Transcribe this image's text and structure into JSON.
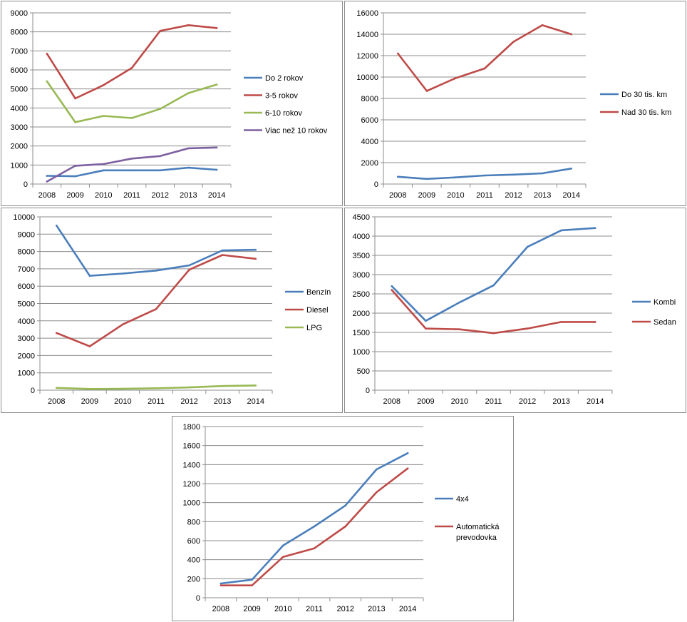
{
  "chart_data": [
    {
      "type": "line",
      "categories": [
        "2008",
        "2009",
        "2010",
        "2011",
        "2012",
        "2013",
        "2014"
      ],
      "ylim": [
        0,
        9000
      ],
      "ystep": 1000,
      "grid": true,
      "legend": "right",
      "series": [
        {
          "name": "Do 2 rokov",
          "color": "#4a7ebb",
          "values": [
            430,
            410,
            720,
            720,
            720,
            860,
            750
          ]
        },
        {
          "name": "3-5 rokov",
          "color": "#be4b48",
          "values": [
            6850,
            4500,
            5200,
            6100,
            8050,
            8350,
            8200
          ]
        },
        {
          "name": "6-10 rokov",
          "color": "#98b954",
          "values": [
            5400,
            3250,
            3580,
            3470,
            3950,
            4780,
            5230
          ]
        },
        {
          "name": "Viac než 10 rokov",
          "color": "#7d60a0",
          "values": [
            130,
            960,
            1050,
            1340,
            1470,
            1880,
            1920
          ]
        }
      ]
    },
    {
      "type": "line",
      "categories": [
        "2008",
        "2009",
        "2010",
        "2011",
        "2012",
        "2013",
        "2014"
      ],
      "ylim": [
        0,
        16000
      ],
      "ystep": 2000,
      "grid": true,
      "legend": "right",
      "series": [
        {
          "name": "Do 30 tis. km",
          "color": "#4a7ebb",
          "values": [
            680,
            480,
            620,
            800,
            880,
            1000,
            1450
          ]
        },
        {
          "name": "Nad 30 tis. km",
          "color": "#be4b48",
          "values": [
            12200,
            8700,
            9900,
            10800,
            13300,
            14850,
            14000
          ]
        }
      ]
    },
    {
      "type": "line",
      "categories": [
        "2008",
        "2009",
        "2010",
        "2011",
        "2012",
        "2013",
        "2014"
      ],
      "ylim": [
        0,
        10000
      ],
      "ystep": 1000,
      "grid": true,
      "legend": "right",
      "series": [
        {
          "name": "Benzín",
          "color": "#4a7ebb",
          "values": [
            9500,
            6600,
            6730,
            6900,
            7200,
            8060,
            8100
          ]
        },
        {
          "name": "Diesel",
          "color": "#be4b48",
          "values": [
            3300,
            2530,
            3800,
            4680,
            6950,
            7800,
            7580
          ]
        },
        {
          "name": "LPG",
          "color": "#98b954",
          "values": [
            130,
            70,
            80,
            110,
            160,
            240,
            270
          ]
        }
      ]
    },
    {
      "type": "line",
      "categories": [
        "2008",
        "2009",
        "2010",
        "2011",
        "2012",
        "2013",
        "2014"
      ],
      "ylim": [
        0,
        4500
      ],
      "ystep": 500,
      "grid": true,
      "legend": "right",
      "series": [
        {
          "name": "Kombi",
          "color": "#4a7ebb",
          "values": [
            2700,
            1800,
            2280,
            2720,
            3720,
            4150,
            4210
          ]
        },
        {
          "name": "Sedan",
          "color": "#be4b48",
          "values": [
            2600,
            1600,
            1580,
            1480,
            1600,
            1770,
            1770
          ]
        }
      ]
    },
    {
      "type": "line",
      "categories": [
        "2008",
        "2009",
        "2010",
        "2011",
        "2012",
        "2013",
        "2014"
      ],
      "ylim": [
        0,
        1800
      ],
      "ystep": 200,
      "grid": true,
      "legend": "right",
      "series": [
        {
          "name": "4x4",
          "color": "#4a7ebb",
          "values": [
            150,
            190,
            550,
            750,
            970,
            1350,
            1520
          ]
        },
        {
          "name": "Automatická prevodovka",
          "color": "#be4b48",
          "values": [
            130,
            130,
            430,
            520,
            750,
            1110,
            1360
          ]
        }
      ]
    }
  ]
}
